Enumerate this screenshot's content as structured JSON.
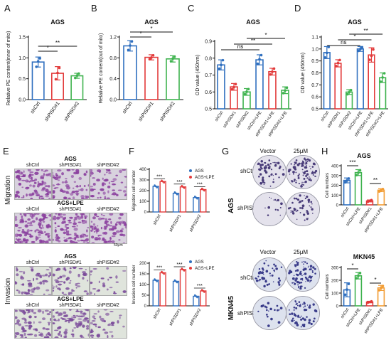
{
  "panel_labels": {
    "A": "A",
    "B": "B",
    "C": "C",
    "D": "D",
    "E": "E",
    "F": "F",
    "G": "G",
    "H": "H"
  },
  "colors": {
    "blue": "#2f6fbf",
    "red": "#e23a3a",
    "green": "#3fb34f",
    "orange": "#f39c32",
    "grey": "#444444"
  },
  "chart_data": [
    {
      "id": "A",
      "type": "bar",
      "title": "AGS",
      "ylabel": "Relative PE content(inner of mito)",
      "categories": [
        "shCtrl",
        "shPISD#1",
        "shPISD#2"
      ],
      "values": [
        0.9,
        0.63,
        0.57
      ],
      "errors": [
        0.12,
        0.16,
        0.06
      ],
      "ylim": [
        0,
        1.5
      ],
      "yticks": [
        "0.0",
        "0.5",
        "1.0",
        "1.5"
      ],
      "colors": [
        "blue",
        "red",
        "green"
      ],
      "significance": [
        {
          "from": 0,
          "to": 1,
          "label": "*"
        },
        {
          "from": 0,
          "to": 2,
          "label": "**"
        }
      ]
    },
    {
      "id": "B",
      "type": "bar",
      "title": "AGS",
      "ylabel": "Relative PE content(out of mito)",
      "categories": [
        "shCtrl",
        "shPISD#1",
        "shPISD#2"
      ],
      "values": [
        1.03,
        0.81,
        0.78
      ],
      "errors": [
        0.1,
        0.05,
        0.06
      ],
      "ylim": [
        0,
        1.2
      ],
      "yticks": [
        "0.0",
        "0.4",
        "0.8",
        "1.2"
      ],
      "colors": [
        "blue",
        "red",
        "green"
      ],
      "significance": [
        {
          "from": 0,
          "to": 1,
          "label": "*"
        },
        {
          "from": 0,
          "to": 2,
          "label": "*"
        }
      ]
    },
    {
      "id": "C",
      "type": "bar",
      "title": "AGS",
      "ylabel": "OD value (450nm)",
      "categories": [
        "shCtrl",
        "shPISD#1",
        "shPISD#2",
        "shCtrl+LPE",
        "shPISD#1+LPE",
        "shPISD#2+LPE"
      ],
      "values": [
        0.76,
        0.63,
        0.6,
        0.79,
        0.72,
        0.61
      ],
      "errors": [
        0.03,
        0.02,
        0.02,
        0.03,
        0.02,
        0.02
      ],
      "ylim": [
        0.5,
        0.9
      ],
      "yticks": [
        "0.5",
        "0.6",
        "0.7",
        "0.8",
        "0.9"
      ],
      "colors": [
        "blue",
        "red",
        "green",
        "blue",
        "red",
        "green"
      ],
      "significance": [
        {
          "from": 0,
          "to": 3,
          "label": "ns"
        },
        {
          "from": 1,
          "to": 4,
          "label": "**"
        },
        {
          "from": 2,
          "to": 5,
          "label": "*"
        }
      ]
    },
    {
      "id": "D",
      "type": "bar",
      "title": "AGS",
      "ylabel": "OD value (450nm)",
      "categories": [
        "shCtrl",
        "shPISD#1",
        "shPISD#2",
        "shCtrl+LPE",
        "shPISD#1+LPE",
        "shPISD#2+LPE"
      ],
      "values": [
        0.97,
        0.88,
        0.64,
        1.0,
        0.95,
        0.76
      ],
      "errors": [
        0.05,
        0.03,
        0.02,
        0.02,
        0.06,
        0.04
      ],
      "ylim": [
        0.5,
        1.1
      ],
      "yticks": [
        "0.5",
        "0.6",
        "0.7",
        "0.8",
        "0.9",
        "1.0",
        "1.1"
      ],
      "colors": [
        "blue",
        "red",
        "green",
        "blue",
        "red",
        "green"
      ],
      "significance": [
        {
          "from": 0,
          "to": 3,
          "label": "ns"
        },
        {
          "from": 1,
          "to": 4,
          "label": "*"
        },
        {
          "from": 2,
          "to": 5,
          "label": "**"
        }
      ]
    },
    {
      "id": "F1",
      "type": "bar",
      "title": "",
      "ylabel": "Migration cell number",
      "categories": [
        "shCtrl",
        "shPISD#1",
        "shPISD#2"
      ],
      "series": [
        {
          "name": "AGS",
          "values": [
            240,
            175,
            135
          ],
          "color": "blue"
        },
        {
          "name": "AGS+LPE",
          "values": [
            285,
            235,
            210
          ],
          "color": "red"
        }
      ],
      "ylim": [
        0,
        400
      ],
      "yticks": [
        "0",
        "100",
        "200",
        "300",
        "400"
      ],
      "significance": [
        "***",
        "***",
        "***"
      ]
    },
    {
      "id": "F2",
      "type": "bar",
      "title": "",
      "ylabel": "Invasion cell number",
      "categories": [
        "shCtrl",
        "shPISD#1",
        "shPISD#2"
      ],
      "series": [
        {
          "name": "AGS",
          "values": [
            120,
            115,
            45
          ],
          "color": "blue"
        },
        {
          "name": "AGS+LPE",
          "values": [
            155,
            170,
            70
          ],
          "color": "red"
        }
      ],
      "ylim": [
        0,
        200
      ],
      "yticks": [
        "0",
        "50",
        "100",
        "150",
        "200"
      ],
      "significance": [
        "***",
        "***",
        "***"
      ]
    },
    {
      "id": "H1",
      "type": "bar",
      "title": "AGS",
      "ylabel": "Cell numbers",
      "categories": [
        "shCtrl",
        "shCtrl+LPE",
        "shPISD#1",
        "shPISD#1+LPE"
      ],
      "values": [
        250,
        330,
        40,
        150
      ],
      "errors": [
        25,
        30,
        10,
        15
      ],
      "ylim": [
        0,
        400
      ],
      "yticks": [
        "0",
        "100",
        "200",
        "300",
        "400"
      ],
      "colors": [
        "blue",
        "green",
        "red",
        "orange"
      ],
      "significance": [
        {
          "from": 0,
          "to": 1,
          "label": "***"
        },
        {
          "from": 2,
          "to": 3,
          "label": "**"
        }
      ]
    },
    {
      "id": "H2",
      "type": "bar",
      "title": "MKN45",
      "ylabel": "Cell numbers",
      "categories": [
        "shCtrl",
        "shCtrl+LPE",
        "shPISD#1",
        "shPISD#1+LPE"
      ],
      "values": [
        125,
        235,
        30,
        140
      ],
      "errors": [
        55,
        25,
        6,
        20
      ],
      "ylim": [
        0,
        300
      ],
      "yticks": [
        "0",
        "100",
        "200",
        "300"
      ],
      "colors": [
        "blue",
        "green",
        "red",
        "orange"
      ],
      "significance": [
        {
          "from": 0,
          "to": 1,
          "label": "*"
        },
        {
          "from": 2,
          "to": 3,
          "label": "*"
        }
      ]
    }
  ],
  "panelE": {
    "migration_label": "Migration",
    "invasion_label": "Invasion",
    "ags": "AGS",
    "ags_lpe": "AGS+LPE",
    "cols": [
      "shCtrl",
      "shPISD#1",
      "shPISD#2"
    ],
    "scale": "50μm"
  },
  "panelG": {
    "ags": "AGS",
    "mkn45": "MKN45",
    "vector": "Vector",
    "dose": "25μM",
    "shctrl": "shCtrl",
    "shpisd": "shPISD#1"
  }
}
